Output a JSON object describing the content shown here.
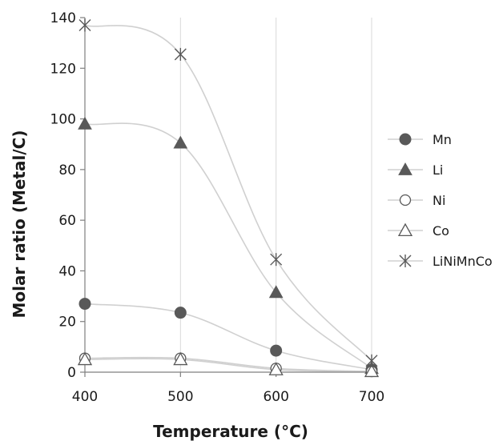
{
  "chart_data": {
    "type": "line",
    "xlabel": "Temperature (°C)",
    "ylabel": "Molar ratio (Metal/C)",
    "xlim": [
      400,
      700
    ],
    "ylim": [
      0,
      140
    ],
    "x_ticks": [
      "400",
      "500",
      "600",
      "700"
    ],
    "y_ticks": [
      "0",
      "20",
      "40",
      "60",
      "80",
      "100",
      "120",
      "140"
    ],
    "x": [
      400,
      500,
      600,
      700
    ],
    "grid": "vertical gridlines",
    "legend_position": "right",
    "series": [
      {
        "name": "Mn",
        "marker": "filled-circle",
        "values": [
          27,
          23.5,
          8.5,
          1
        ]
      },
      {
        "name": "Li",
        "marker": "filled-triangle",
        "values": [
          98,
          90.5,
          31.5,
          1.5
        ]
      },
      {
        "name": "Ni",
        "marker": "open-circle",
        "values": [
          5.5,
          5.5,
          1.5,
          0.3
        ]
      },
      {
        "name": "Co",
        "marker": "open-triangle",
        "values": [
          5,
          5,
          1,
          0.3
        ]
      },
      {
        "name": "LiNiMnCo",
        "marker": "star",
        "values": [
          137,
          125.5,
          44.5,
          4.5
        ]
      }
    ]
  },
  "colors": {
    "marker": "#595959",
    "line": "#d0d0d0",
    "axis": "#7f7f7f",
    "grid": "#d9d9d9"
  }
}
